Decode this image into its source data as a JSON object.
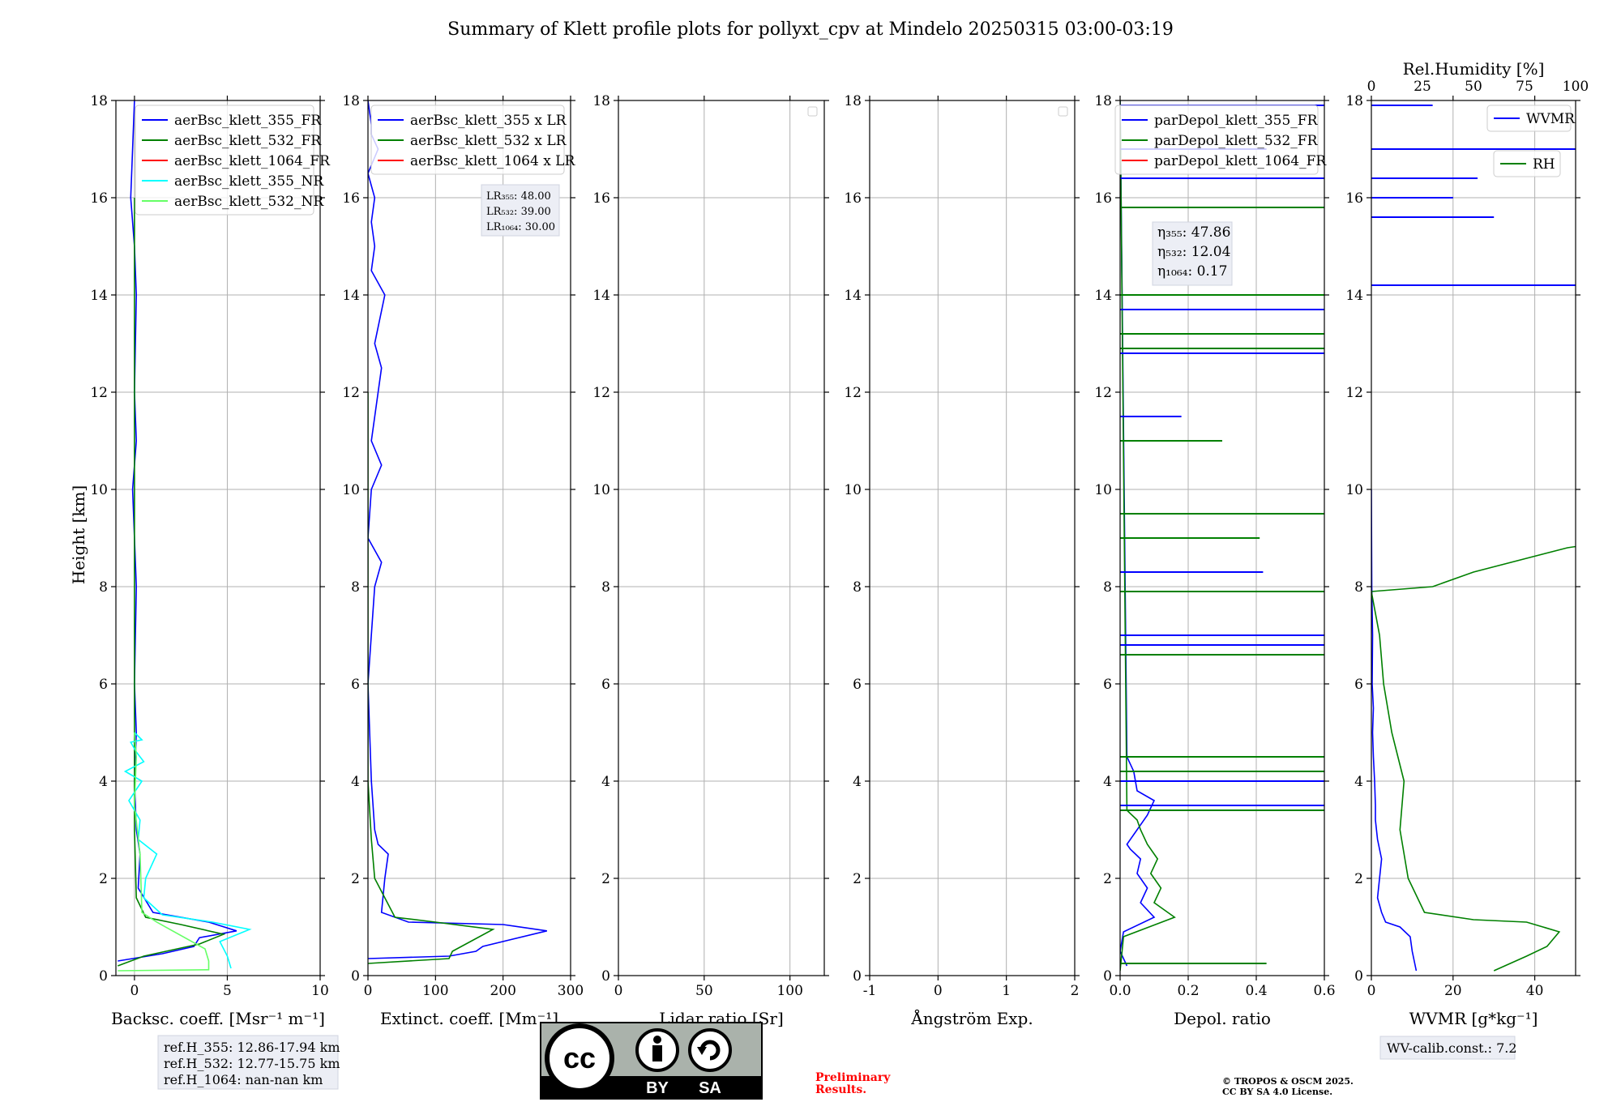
{
  "title": "Summary of Klett profile plots for pollyxt_cpv at Mindelo 20250315 03:00-03:19",
  "ylabel": "Height [km]",
  "ref_box": [
    "ref.H_355: 12.86-17.94 km",
    "ref.H_532: 12.77-15.75 km",
    "ref.H_1064: nan-nan km"
  ],
  "wv_box": "WV-calib.const.: 7.2",
  "preliminary": [
    "Preliminary",
    "Results."
  ],
  "copyright": [
    "© TROPOS & OSCM 2025.",
    "CC BY SA 4.0 License."
  ],
  "license_badge": {
    "by": "BY",
    "sa": "SA",
    "cc": "cc"
  },
  "colors": {
    "c355": "#0000ff",
    "c532": "#008000",
    "c1064": "#ff0000",
    "c355nr": "#00ffff",
    "c532nr": "#66ff66",
    "preliminary": "#ff0000"
  },
  "chart_data": [
    {
      "type": "line",
      "xlabel": "Backsc. coeff. [Msr⁻¹ m⁻¹]",
      "xlim": [
        -1,
        10
      ],
      "ylim": [
        0,
        18
      ],
      "xticks": [
        0,
        5,
        10
      ],
      "yticks": [
        0,
        2,
        4,
        6,
        8,
        10,
        12,
        14,
        16,
        18
      ],
      "grid": true,
      "legend_position": "top-right",
      "series": [
        {
          "name": "aerBsc_klett_355_FR",
          "color": "#0000ff",
          "x": [
            -0.9,
            1.5,
            3.2,
            3.5,
            5.5,
            4.0,
            1.0,
            0.2,
            0.3,
            0.1,
            0.0,
            0.1,
            0.0,
            0.1,
            -0.1,
            0.0,
            0.1,
            0.0,
            0.1,
            0.0,
            -0.2,
            0.0
          ],
          "y": [
            0.3,
            0.45,
            0.6,
            0.78,
            0.92,
            1.1,
            1.3,
            1.8,
            2.5,
            3.0,
            4.0,
            5.0,
            6.0,
            8.0,
            10.0,
            10.5,
            11.0,
            12.0,
            14.0,
            15.0,
            16.0,
            18.0
          ]
        },
        {
          "name": "aerBsc_klett_532_FR",
          "color": "#008000",
          "x": [
            -0.9,
            0.5,
            3.5,
            4.8,
            2.5,
            0.6,
            0.1,
            0.0,
            0.0,
            0.0,
            0.0,
            0.0,
            0.0
          ],
          "y": [
            0.2,
            0.4,
            0.65,
            0.85,
            1.05,
            1.2,
            1.6,
            3.0,
            5.0,
            8.0,
            10.0,
            12.0,
            16.0
          ]
        },
        {
          "name": "aerBsc_klett_1064_FR",
          "color": "#ff0000",
          "x": [],
          "y": []
        },
        {
          "name": "aerBsc_klett_355_NR",
          "color": "#00ffff",
          "x": [
            5.2,
            5.0,
            4.6,
            6.2,
            4.2,
            1.5,
            0.5,
            0.6,
            1.2,
            0.2,
            0.3,
            -0.3,
            0.4,
            -0.5,
            0.5,
            0.1,
            -0.2,
            0.4,
            0.0
          ],
          "y": [
            0.15,
            0.4,
            0.7,
            0.95,
            1.1,
            1.25,
            1.6,
            2.0,
            2.5,
            2.8,
            3.2,
            3.6,
            4.0,
            4.2,
            4.4,
            4.6,
            4.8,
            4.85,
            5.0
          ]
        },
        {
          "name": "aerBsc_klett_532_NR",
          "color": "#66ff66",
          "x": [
            -0.9,
            4.0,
            4.0,
            3.8,
            1.2,
            0.4,
            0.3,
            0.0,
            0.1,
            0.0
          ],
          "y": [
            0.1,
            0.12,
            0.3,
            0.55,
            1.1,
            1.3,
            2.5,
            3.5,
            4.5,
            5.0
          ]
        }
      ]
    },
    {
      "type": "line",
      "xlabel": "Extinct. coeff. [Mm⁻¹]",
      "xlim": [
        0,
        300
      ],
      "ylim": [
        0,
        18
      ],
      "xticks": [
        0,
        100,
        200,
        300
      ],
      "yticks": [
        0,
        2,
        4,
        6,
        8,
        10,
        12,
        14,
        16,
        18
      ],
      "grid": true,
      "legend_position": "top-right",
      "annotation": [
        "LR₃₅₅: 48.00",
        "LR₅₃₂: 39.00",
        "LR₁₀₆₄: 30.00"
      ],
      "series": [
        {
          "name": "aerBsc_klett_355 x LR",
          "color": "#0000ff",
          "x": [
            0,
            120,
            160,
            170,
            265,
            200,
            60,
            20,
            25,
            30,
            15,
            10,
            5,
            0,
            10,
            20,
            0,
            5,
            20,
            5,
            20,
            10,
            25,
            5,
            10,
            5,
            10,
            0,
            15,
            5,
            5,
            0
          ],
          "y": [
            0.35,
            0.4,
            0.5,
            0.6,
            0.92,
            1.05,
            1.1,
            1.3,
            2.0,
            2.5,
            2.7,
            3.0,
            4.0,
            6.0,
            8.0,
            8.5,
            9.0,
            10.0,
            10.5,
            11.0,
            12.5,
            13.0,
            14.0,
            14.5,
            15.0,
            15.5,
            16.0,
            16.5,
            17.0,
            17.3,
            17.5,
            18.0
          ]
        },
        {
          "name": "aerBsc_klett_532 x LR",
          "color": "#008000",
          "x": [
            0,
            120,
            125,
            185,
            100,
            40,
            10,
            5,
            0,
            0,
            0,
            0
          ],
          "y": [
            0.25,
            0.35,
            0.5,
            0.95,
            1.1,
            1.2,
            2.0,
            2.8,
            4.0,
            8.0,
            10.0,
            12.0
          ]
        },
        {
          "name": "aerBsc_klett_1064 x LR",
          "color": "#ff0000",
          "x": [],
          "y": []
        }
      ]
    },
    {
      "type": "line",
      "xlabel": "Lidar ratio [Sr]",
      "xlim": [
        0,
        120
      ],
      "ylim": [
        0,
        18
      ],
      "xticks": [
        0,
        50,
        100
      ],
      "yticks": [
        0,
        2,
        4,
        6,
        8,
        10,
        12,
        14,
        16,
        18
      ],
      "grid": true,
      "legend_position": "top-right",
      "series": []
    },
    {
      "type": "line",
      "xlabel": "Ångström Exp.",
      "xlim": [
        -1,
        2
      ],
      "ylim": [
        0,
        18
      ],
      "xticks": [
        -1,
        0,
        1,
        2
      ],
      "yticks": [
        0,
        2,
        4,
        6,
        8,
        10,
        12,
        14,
        16,
        18
      ],
      "grid": true,
      "legend_position": "top-right",
      "series": []
    },
    {
      "type": "line",
      "xlabel": "Depol. ratio",
      "xlim": [
        0,
        0.6
      ],
      "ylim": [
        0,
        18
      ],
      "xticks": [
        0.0,
        0.2,
        0.4,
        0.6
      ],
      "yticks": [
        0,
        2,
        4,
        6,
        8,
        10,
        12,
        14,
        16,
        18
      ],
      "grid": true,
      "legend_position": "top-right",
      "annotation": [
        "η₃₅₅: 47.86",
        "η₅₃₂: 12.04",
        "η₁₀₆₄: 0.17"
      ],
      "series": [
        {
          "name": "parDepol_klett_355_FR",
          "color": "#0000ff",
          "x": [
            0.02,
            0.0,
            0.01,
            0.1,
            0.06,
            0.08,
            0.05,
            0.06,
            0.03,
            0.02,
            0.08,
            0.1,
            0.05,
            0.04,
            0.02,
            0.0
          ],
          "y": [
            0.2,
            0.5,
            0.9,
            1.2,
            1.5,
            1.8,
            2.1,
            2.4,
            2.6,
            2.7,
            3.3,
            3.6,
            3.8,
            4.2,
            4.5,
            18.0
          ]
        },
        {
          "name": "parDepol_klett_532_FR",
          "color": "#008000",
          "x": [
            0.0,
            0.01,
            0.16,
            0.1,
            0.12,
            0.09,
            0.11,
            0.08,
            0.06,
            0.05,
            0.02,
            0.0
          ],
          "y": [
            0.1,
            0.8,
            1.2,
            1.5,
            1.8,
            2.1,
            2.4,
            2.7,
            3.0,
            3.2,
            3.4,
            18.0
          ]
        },
        {
          "name": "parDepol_klett_1064_FR",
          "color": "#ff0000",
          "x": [],
          "y": []
        }
      ],
      "spikes_355": [
        [
          0.43,
          17.0
        ],
        [
          0.6,
          16.4
        ],
        [
          0.6,
          13.7
        ],
        [
          0.6,
          12.8
        ],
        [
          0.18,
          11.5
        ],
        [
          0.42,
          8.3
        ],
        [
          0.6,
          7.0
        ],
        [
          0.6,
          6.8
        ],
        [
          0.6,
          4.0
        ],
        [
          0.6,
          3.5
        ],
        [
          0.6,
          17.9
        ]
      ],
      "spikes_532": [
        [
          0.6,
          15.8
        ],
        [
          0.6,
          14.0
        ],
        [
          0.6,
          13.2
        ],
        [
          0.6,
          12.9
        ],
        [
          0.3,
          11.0
        ],
        [
          0.6,
          9.5
        ],
        [
          0.41,
          9.0
        ],
        [
          0.6,
          7.9
        ],
        [
          0.6,
          6.6
        ],
        [
          0.6,
          4.5
        ],
        [
          0.6,
          4.2
        ],
        [
          0.6,
          3.4
        ],
        [
          0.43,
          0.25
        ]
      ]
    },
    {
      "type": "line",
      "xlabel": "WVMR [g*kg⁻¹]",
      "xlim": [
        0,
        50
      ],
      "ylim": [
        0,
        18
      ],
      "xticks": [
        0,
        20,
        40
      ],
      "yticks": [
        0,
        2,
        4,
        6,
        8,
        10,
        12,
        14,
        16,
        18
      ],
      "x2label": "Rel.Humidity [%]",
      "x2lim": [
        0,
        100
      ],
      "x2ticks": [
        0,
        25,
        50,
        75,
        100
      ],
      "grid": true,
      "legend_position": "top-right",
      "series": [
        {
          "name": "WVMR",
          "color": "#0000ff",
          "x": [
            11,
            10,
            9.5,
            7,
            3.5,
            2.5,
            1.5,
            2.0,
            2.5,
            1.5,
            1.0,
            1.0,
            0.8,
            0.5,
            0.3,
            0.5,
            0.2,
            0.3,
            0.1,
            0.0
          ],
          "y": [
            0.1,
            0.5,
            0.8,
            1.0,
            1.1,
            1.3,
            1.6,
            2.0,
            2.4,
            2.8,
            3.2,
            3.5,
            4.0,
            4.5,
            5.0,
            5.5,
            6.0,
            7.0,
            8.0,
            10.0
          ]
        },
        {
          "name": "RH",
          "color": "#008000",
          "x": [
            30,
            38,
            43,
            46,
            42,
            38,
            25,
            13,
            9,
            7,
            8,
            5,
            3,
            2,
            0,
            15,
            25,
            48,
            80,
            95,
            70,
            99
          ],
          "y": [
            0.1,
            0.4,
            0.6,
            0.9,
            1.0,
            1.1,
            1.15,
            1.3,
            2.0,
            3.0,
            4.0,
            5.0,
            6.0,
            7.0,
            7.9,
            8.0,
            8.3,
            8.8,
            9.2,
            9.7,
            10.3,
            10.8
          ]
        }
      ],
      "wvmr_spikes": [
        [
          50,
          17.0
        ],
        [
          50,
          14.2
        ],
        [
          30,
          15.6
        ],
        [
          26,
          16.4
        ],
        [
          20,
          16.0
        ],
        [
          15,
          17.9
        ]
      ]
    }
  ]
}
